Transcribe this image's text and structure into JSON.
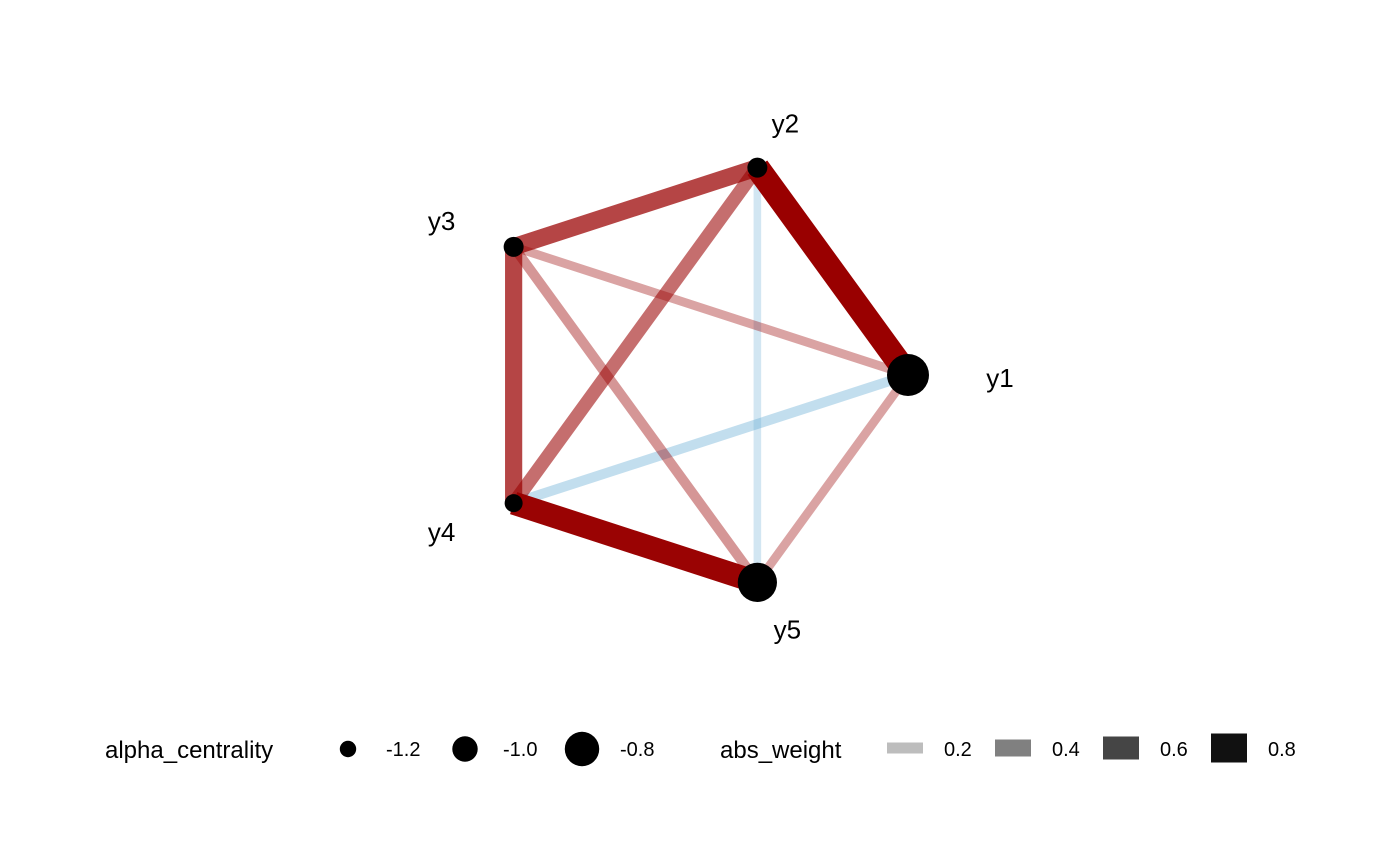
{
  "chart_data": {
    "type": "network",
    "nodes": [
      {
        "id": "y1",
        "label": "y1",
        "alpha_centrality": -0.8
      },
      {
        "id": "y2",
        "label": "y2",
        "alpha_centrality": -1.2
      },
      {
        "id": "y3",
        "label": "y3",
        "alpha_centrality": -1.2
      },
      {
        "id": "y4",
        "label": "y4",
        "alpha_centrality": -1.35
      },
      {
        "id": "y5",
        "label": "y5",
        "alpha_centrality": -0.85
      }
    ],
    "edges": [
      {
        "from": "y1",
        "to": "y2",
        "weight": 0.85
      },
      {
        "from": "y4",
        "to": "y5",
        "weight": 0.8
      },
      {
        "from": "y2",
        "to": "y3",
        "weight": 0.55
      },
      {
        "from": "y3",
        "to": "y4",
        "weight": 0.55
      },
      {
        "from": "y2",
        "to": "y4",
        "weight": 0.4
      },
      {
        "from": "y1",
        "to": "y4",
        "weight": -0.25
      },
      {
        "from": "y2",
        "to": "y5",
        "weight": -0.15
      },
      {
        "from": "y1",
        "to": "y3",
        "weight": 0.2
      },
      {
        "from": "y1",
        "to": "y5",
        "weight": 0.2
      },
      {
        "from": "y3",
        "to": "y5",
        "weight": 0.25
      }
    ],
    "colors": {
      "positive": "#990000",
      "negative": "#6baed6"
    },
    "legend": {
      "position": "bottom",
      "size_title": "alpha_centrality",
      "size_items": [
        {
          "label": "-1.2",
          "value": -1.2
        },
        {
          "label": "-1.0",
          "value": -1.0
        },
        {
          "label": "-0.8",
          "value": -0.8
        }
      ],
      "weight_title": "abs_weight",
      "weight_items": [
        {
          "label": "0.2",
          "value": 0.2
        },
        {
          "label": "0.4",
          "value": 0.4
        },
        {
          "label": "0.6",
          "value": 0.6
        },
        {
          "label": "0.8",
          "value": 0.8
        }
      ]
    }
  }
}
